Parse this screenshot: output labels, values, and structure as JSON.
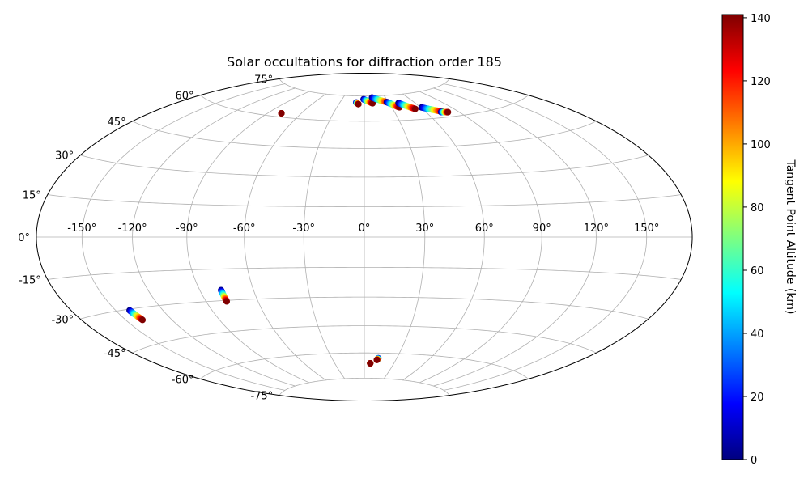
{
  "chart_data": {
    "type": "scatter",
    "projection": "hammer",
    "title": "Solar occultations for diffraction order 185",
    "grid": true,
    "lon_ticks": [
      {
        "value": -150,
        "label": "-150°"
      },
      {
        "value": -120,
        "label": "-120°"
      },
      {
        "value": -90,
        "label": "-90°"
      },
      {
        "value": -60,
        "label": "-60°"
      },
      {
        "value": -30,
        "label": "-30°"
      },
      {
        "value": 0,
        "label": "0°"
      },
      {
        "value": 30,
        "label": "30°"
      },
      {
        "value": 60,
        "label": "60°"
      },
      {
        "value": 90,
        "label": "90°"
      },
      {
        "value": 120,
        "label": "120°"
      },
      {
        "value": 150,
        "label": "150°"
      }
    ],
    "lat_ticks": [
      {
        "value": 75,
        "label": "75°"
      },
      {
        "value": 60,
        "label": "60°"
      },
      {
        "value": 45,
        "label": "45°"
      },
      {
        "value": 30,
        "label": "30°"
      },
      {
        "value": 15,
        "label": "15°"
      },
      {
        "value": 0,
        "label": "0°"
      },
      {
        "value": -15,
        "label": "-15°"
      },
      {
        "value": -30,
        "label": "-30°"
      },
      {
        "value": -45,
        "label": "-45°"
      },
      {
        "value": -60,
        "label": "-60°"
      },
      {
        "value": -75,
        "label": "-75°"
      }
    ],
    "colorbar": {
      "label": "Tangent Point Altitude (km)",
      "colormap": "jet",
      "range": [
        0,
        141
      ],
      "ticks": [
        {
          "value": 0,
          "label": "0"
        },
        {
          "value": 20,
          "label": "20"
        },
        {
          "value": 40,
          "label": "40"
        },
        {
          "value": 60,
          "label": "60"
        },
        {
          "value": 80,
          "label": "80"
        },
        {
          "value": 100,
          "label": "100"
        },
        {
          "value": 120,
          "label": "120"
        },
        {
          "value": 140,
          "label": "140"
        }
      ]
    },
    "tracks": [
      {
        "lon_start": -78,
        "lat_start": 62,
        "lon_end": -78,
        "lat_end": 62
      },
      {
        "lon_start": -10,
        "lat_start": 71,
        "lon_end": -7,
        "lat_end": 70
      },
      {
        "lon_start": -1,
        "lat_start": 73,
        "lon_end": 10,
        "lat_end": 70.5
      },
      {
        "lon_start": 11,
        "lat_start": 74,
        "lon_end": 30,
        "lat_end": 70.5
      },
      {
        "lon_start": 28,
        "lat_start": 71,
        "lon_end": 38,
        "lat_end": 67.5
      },
      {
        "lon_start": 41,
        "lat_start": 70,
        "lon_end": 53,
        "lat_end": 66
      },
      {
        "lon_start": 61,
        "lat_start": 66.5,
        "lon_end": 76,
        "lat_end": 63
      },
      {
        "lon_start": 74,
        "lat_start": 63,
        "lon_end": 80,
        "lat_end": 62.5
      },
      {
        "lon_start": -141,
        "lat_start": -30.5,
        "lon_end": -139,
        "lat_end": -35
      },
      {
        "lon_start": -78,
        "lat_start": -25,
        "lon_end": -78,
        "lat_end": -30.5
      },
      {
        "lon_start": 6,
        "lat_start": -66,
        "lon_end": 6,
        "lat_end": -66
      },
      {
        "lon_start": 13,
        "lat_start": -63,
        "lon_end": 12,
        "lat_end": -64
      }
    ]
  }
}
